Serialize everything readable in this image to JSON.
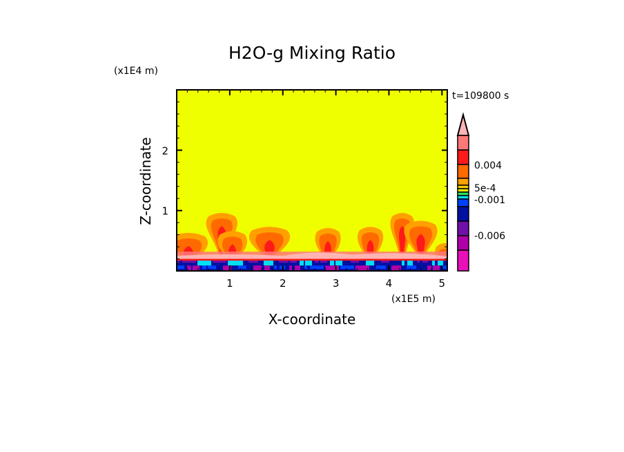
{
  "chart_data": {
    "type": "heatmap",
    "title": "H2O-g Mixing Ratio",
    "xlabel": "X-coordinate",
    "ylabel": "Z-coordinate",
    "x_unit": "(x1E5 m)",
    "y_unit": "(x1E4 m)",
    "time_label": "t=109800 s",
    "xlim": [
      0,
      5.1
    ],
    "ylim": [
      0,
      3.0
    ],
    "x_ticks": [
      "1",
      "2",
      "3",
      "4",
      "5"
    ],
    "x_tick_values": [
      1,
      2,
      3,
      4,
      5
    ],
    "y_ticks": [
      "1",
      "2"
    ],
    "y_tick_values": [
      1,
      2
    ],
    "background_value_color": "#f0ff00",
    "colorbar": {
      "labels": [
        "0.004",
        "5e-4",
        "-0.001",
        "-0.006"
      ],
      "extend": "max",
      "colors": [
        "#ffb4b4",
        "#ff7878",
        "#ff1a1a",
        "#ff6a00",
        "#ffa000",
        "#ffcc00",
        "#f0f000",
        "#30e060",
        "#00e0f0",
        "#0040ff",
        "#0010a0",
        "#7010a8",
        "#b000a8",
        "#e810b8"
      ]
    }
  }
}
